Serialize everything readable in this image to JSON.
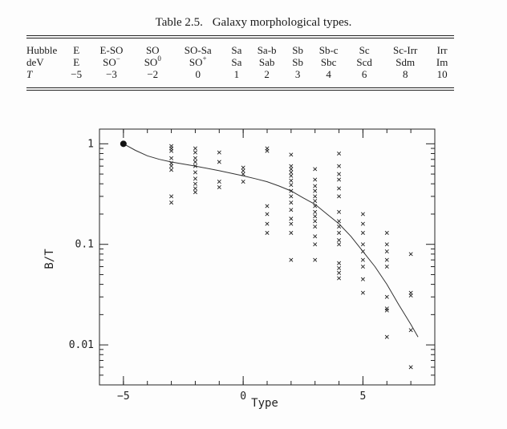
{
  "table": {
    "caption_label": "Table 2.5.",
    "caption_text": "Galaxy morphological types.",
    "row_labels": [
      "Hubble",
      "deV",
      "T"
    ],
    "columns": [
      {
        "hubble": "E",
        "dev": "E",
        "dev_sup": "",
        "t": "−5"
      },
      {
        "hubble": "E-SO",
        "dev": "SO",
        "dev_sup": "−",
        "t": "−3"
      },
      {
        "hubble": "SO",
        "dev": "SO",
        "dev_sup": "0",
        "t": "−2"
      },
      {
        "hubble": "SO-Sa",
        "dev": "SO",
        "dev_sup": "+",
        "t": "0"
      },
      {
        "hubble": "Sa",
        "dev": "Sa",
        "dev_sup": "",
        "t": "1"
      },
      {
        "hubble": "Sa-b",
        "dev": "Sab",
        "dev_sup": "",
        "t": "2"
      },
      {
        "hubble": "Sb",
        "dev": "Sb",
        "dev_sup": "",
        "t": "3"
      },
      {
        "hubble": "Sb-c",
        "dev": "Sbc",
        "dev_sup": "",
        "t": "4"
      },
      {
        "hubble": "Sc",
        "dev": "Scd",
        "dev_sup": "",
        "t": "6"
      },
      {
        "hubble": "Sc-Irr",
        "dev": "Sdm",
        "dev_sup": "",
        "t": "8"
      },
      {
        "hubble": "Irr",
        "dev": "Im",
        "dev_sup": "",
        "t": "10"
      }
    ]
  },
  "chart_data": {
    "type": "scatter",
    "xlabel": "Type",
    "ylabel": "B/T",
    "xlim": [
      -6,
      8
    ],
    "ylim": [
      0.004,
      1.4
    ],
    "yscale": "log",
    "x_ticks": [
      {
        "v": -5,
        "label": "−5"
      },
      {
        "v": 0,
        "label": "0"
      },
      {
        "v": 5,
        "label": "5"
      }
    ],
    "y_ticks": [
      {
        "v": 1,
        "label": "1"
      },
      {
        "v": 0.1,
        "label": "0.1"
      },
      {
        "v": 0.01,
        "label": "0.01"
      }
    ],
    "reference_point": {
      "x": -5,
      "y": 1
    },
    "curve": [
      {
        "x": -5,
        "y": 1
      },
      {
        "x": -4.5,
        "y": 0.86
      },
      {
        "x": -4,
        "y": 0.76
      },
      {
        "x": -3.5,
        "y": 0.7
      },
      {
        "x": -3,
        "y": 0.66
      },
      {
        "x": -2,
        "y": 0.6
      },
      {
        "x": -1,
        "y": 0.54
      },
      {
        "x": 0,
        "y": 0.48
      },
      {
        "x": 0.5,
        "y": 0.45
      },
      {
        "x": 1,
        "y": 0.42
      },
      {
        "x": 1.5,
        "y": 0.38
      },
      {
        "x": 2,
        "y": 0.34
      },
      {
        "x": 2.5,
        "y": 0.29
      },
      {
        "x": 3,
        "y": 0.25
      },
      {
        "x": 3.5,
        "y": 0.2
      },
      {
        "x": 4,
        "y": 0.16
      },
      {
        "x": 4.5,
        "y": 0.12
      },
      {
        "x": 5,
        "y": 0.085
      },
      {
        "x": 5.5,
        "y": 0.06
      },
      {
        "x": 6,
        "y": 0.04
      },
      {
        "x": 6.5,
        "y": 0.025
      },
      {
        "x": 7,
        "y": 0.016
      },
      {
        "x": 7.3,
        "y": 0.012
      }
    ],
    "points": [
      {
        "x": -3,
        "y": 0.95
      },
      {
        "x": -3,
        "y": 0.9
      },
      {
        "x": -3,
        "y": 0.85
      },
      {
        "x": -3,
        "y": 0.72
      },
      {
        "x": -3,
        "y": 0.64
      },
      {
        "x": -3,
        "y": 0.6
      },
      {
        "x": -3,
        "y": 0.55
      },
      {
        "x": -3,
        "y": 0.3
      },
      {
        "x": -3,
        "y": 0.26
      },
      {
        "x": -2,
        "y": 0.9
      },
      {
        "x": -2,
        "y": 0.82
      },
      {
        "x": -2,
        "y": 0.72
      },
      {
        "x": -2,
        "y": 0.66
      },
      {
        "x": -2,
        "y": 0.6
      },
      {
        "x": -2,
        "y": 0.52
      },
      {
        "x": -2,
        "y": 0.45
      },
      {
        "x": -2,
        "y": 0.4
      },
      {
        "x": -2,
        "y": 0.36
      },
      {
        "x": -2,
        "y": 0.33
      },
      {
        "x": -1,
        "y": 0.82
      },
      {
        "x": -1,
        "y": 0.66
      },
      {
        "x": -1,
        "y": 0.42
      },
      {
        "x": -1,
        "y": 0.37
      },
      {
        "x": 0,
        "y": 0.58
      },
      {
        "x": 0,
        "y": 0.54
      },
      {
        "x": 0,
        "y": 0.5
      },
      {
        "x": 0,
        "y": 0.42
      },
      {
        "x": 1,
        "y": 0.9
      },
      {
        "x": 1,
        "y": 0.85
      },
      {
        "x": 1,
        "y": 0.24
      },
      {
        "x": 1,
        "y": 0.2
      },
      {
        "x": 1,
        "y": 0.16
      },
      {
        "x": 1,
        "y": 0.13
      },
      {
        "x": 2,
        "y": 0.78
      },
      {
        "x": 2,
        "y": 0.6
      },
      {
        "x": 2,
        "y": 0.56
      },
      {
        "x": 2,
        "y": 0.52
      },
      {
        "x": 2,
        "y": 0.48
      },
      {
        "x": 2,
        "y": 0.43
      },
      {
        "x": 2,
        "y": 0.39
      },
      {
        "x": 2,
        "y": 0.34
      },
      {
        "x": 2,
        "y": 0.3
      },
      {
        "x": 2,
        "y": 0.26
      },
      {
        "x": 2,
        "y": 0.22
      },
      {
        "x": 2,
        "y": 0.18
      },
      {
        "x": 2,
        "y": 0.16
      },
      {
        "x": 2,
        "y": 0.13
      },
      {
        "x": 2,
        "y": 0.07
      },
      {
        "x": 3,
        "y": 0.56
      },
      {
        "x": 3,
        "y": 0.44
      },
      {
        "x": 3,
        "y": 0.38
      },
      {
        "x": 3,
        "y": 0.34
      },
      {
        "x": 3,
        "y": 0.3
      },
      {
        "x": 3,
        "y": 0.27
      },
      {
        "x": 3,
        "y": 0.24
      },
      {
        "x": 3,
        "y": 0.21
      },
      {
        "x": 3,
        "y": 0.19
      },
      {
        "x": 3,
        "y": 0.17
      },
      {
        "x": 3,
        "y": 0.15
      },
      {
        "x": 3,
        "y": 0.12
      },
      {
        "x": 3,
        "y": 0.1
      },
      {
        "x": 3,
        "y": 0.07
      },
      {
        "x": 4,
        "y": 0.8
      },
      {
        "x": 4,
        "y": 0.6
      },
      {
        "x": 4,
        "y": 0.5
      },
      {
        "x": 4,
        "y": 0.44
      },
      {
        "x": 4,
        "y": 0.36
      },
      {
        "x": 4,
        "y": 0.3
      },
      {
        "x": 4,
        "y": 0.21
      },
      {
        "x": 4,
        "y": 0.17
      },
      {
        "x": 4,
        "y": 0.15
      },
      {
        "x": 4,
        "y": 0.13
      },
      {
        "x": 4,
        "y": 0.11
      },
      {
        "x": 4,
        "y": 0.1
      },
      {
        "x": 4,
        "y": 0.065
      },
      {
        "x": 4,
        "y": 0.058
      },
      {
        "x": 4,
        "y": 0.052
      },
      {
        "x": 4,
        "y": 0.046
      },
      {
        "x": 5,
        "y": 0.2
      },
      {
        "x": 5,
        "y": 0.16
      },
      {
        "x": 5,
        "y": 0.13
      },
      {
        "x": 5,
        "y": 0.1
      },
      {
        "x": 5,
        "y": 0.085
      },
      {
        "x": 5,
        "y": 0.07
      },
      {
        "x": 5,
        "y": 0.06
      },
      {
        "x": 5,
        "y": 0.045
      },
      {
        "x": 5,
        "y": 0.033
      },
      {
        "x": 6,
        "y": 0.13
      },
      {
        "x": 6,
        "y": 0.1
      },
      {
        "x": 6,
        "y": 0.085
      },
      {
        "x": 6,
        "y": 0.07
      },
      {
        "x": 6,
        "y": 0.06
      },
      {
        "x": 6,
        "y": 0.03
      },
      {
        "x": 6,
        "y": 0.023
      },
      {
        "x": 6,
        "y": 0.022
      },
      {
        "x": 6,
        "y": 0.012
      },
      {
        "x": 7,
        "y": 0.08
      },
      {
        "x": 7,
        "y": 0.033
      },
      {
        "x": 7,
        "y": 0.031
      },
      {
        "x": 7,
        "y": 0.014
      },
      {
        "x": 7,
        "y": 0.006
      }
    ]
  }
}
